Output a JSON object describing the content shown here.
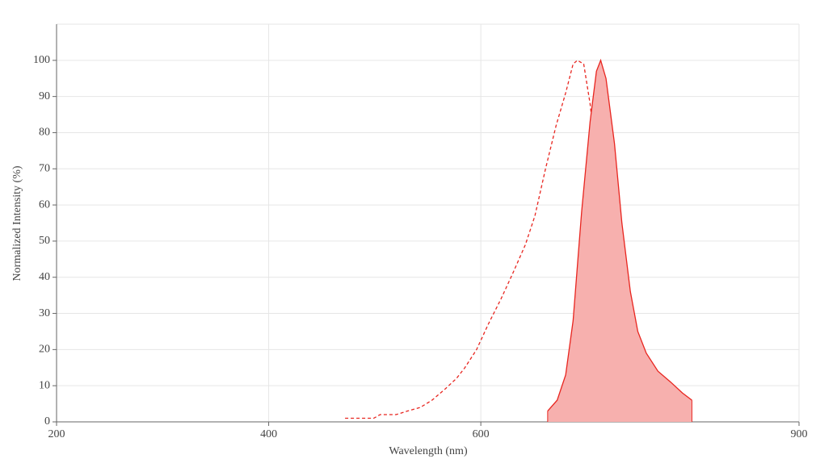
{
  "chart_data": {
    "type": "line",
    "x_label": "Wavelength (nm)",
    "y_label": "Normalized Intensity (%)",
    "xlim": [
      200,
      900
    ],
    "xticks": [
      200,
      400,
      600,
      900
    ],
    "ylim": [
      0,
      110
    ],
    "yticks": [
      0,
      10,
      20,
      30,
      40,
      50,
      60,
      70,
      80,
      90,
      100
    ],
    "grid": true,
    "series": [
      {
        "color": "#e8251f",
        "dashed": true,
        "filled": false,
        "x": [
          472,
          499,
          505,
          520,
          531,
          543,
          554,
          566,
          577,
          585,
          596,
          607,
          619,
          630,
          642,
          651,
          661,
          671,
          680,
          687,
          691,
          697,
          703,
          710,
          718,
          726,
          733,
          741,
          748,
          767
        ],
        "values": [
          1,
          1,
          2,
          2,
          3,
          4,
          6,
          9,
          12,
          15,
          20,
          27,
          34,
          41,
          49,
          57,
          70,
          82,
          91,
          99,
          100,
          99,
          88,
          70,
          42,
          20,
          7,
          3,
          1,
          1
        ]
      },
      {
        "color": "#e8251f",
        "dashed": false,
        "filled": true,
        "fill_color": "#f7b0ae",
        "x": [
          663,
          672,
          680,
          687,
          695,
          703,
          709,
          713,
          718,
          726,
          733,
          741,
          748,
          756,
          767,
          779,
          790,
          799
        ],
        "values": [
          3,
          6,
          13,
          28,
          58,
          83,
          97,
          100,
          95,
          77,
          55,
          36,
          25,
          19,
          14,
          11,
          8,
          6
        ]
      }
    ]
  }
}
